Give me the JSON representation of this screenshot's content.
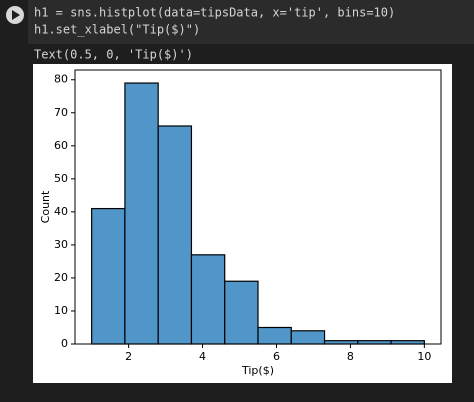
{
  "code": {
    "lines": [
      "h1 = sns.histplot(data=tipsData, x='tip', bins=10)",
      "h1.set_xlabel(\"Tip($)\")"
    ]
  },
  "output": {
    "text": "Text(0.5, 0, 'Tip($)')"
  },
  "chart_data": {
    "type": "histogram",
    "xlabel": "Tip($)",
    "ylabel": "Count",
    "bins": [
      1.0,
      1.9,
      2.8,
      3.7,
      4.6,
      5.5,
      6.4,
      7.3,
      8.2,
      9.1,
      10.0
    ],
    "values": [
      41,
      79,
      66,
      27,
      19,
      5,
      4,
      1,
      1,
      1
    ],
    "color": "#5196c8",
    "edgecolor": "#000000",
    "xlim": [
      0.55,
      10.45
    ],
    "xticks": [
      2,
      4,
      6,
      8,
      10
    ],
    "ylim": [
      0,
      82.95
    ],
    "yticks": [
      0,
      10,
      20,
      30,
      40,
      50,
      60,
      70,
      80
    ],
    "grid": false
  }
}
